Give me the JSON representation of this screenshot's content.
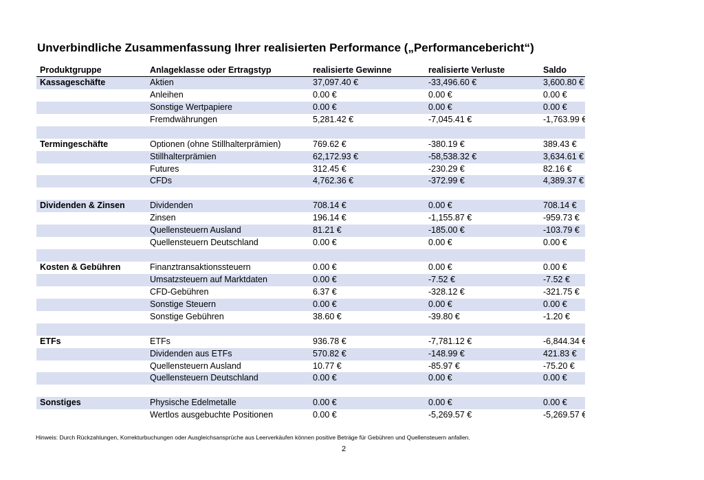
{
  "title": "Unverbindliche Zusammenfassung Ihrer realisierten Performance („Performancebericht“)",
  "headers": {
    "group": "Produktgruppe",
    "category": "Anlageklasse oder Ertragstyp",
    "gains": "realisierte Gewinne",
    "losses": "realisierte Verluste",
    "balance": "Saldo"
  },
  "rows": [
    {
      "group": "Kassageschäfte",
      "category": "Aktien",
      "gains": "37,097.40 €",
      "losses": "-33,496.60 €",
      "balance": "3,600.80 €"
    },
    {
      "group": "",
      "category": "Anleihen",
      "gains": "0.00 €",
      "losses": "0.00 €",
      "balance": "0.00 €"
    },
    {
      "group": "",
      "category": "Sonstige Wertpapiere",
      "gains": "0.00 €",
      "losses": "0.00 €",
      "balance": "0.00 €"
    },
    {
      "group": "",
      "category": "Fremdwährungen",
      "gains": "5,281.42 €",
      "losses": "-7,045.41 €",
      "balance": "-1,763.99 €"
    },
    {
      "group": "",
      "category": "",
      "gains": "",
      "losses": "",
      "balance": ""
    },
    {
      "group": "Termingeschäfte",
      "category": "Optionen (ohne Stillhalterprämien)",
      "gains": "769.62 €",
      "losses": "-380.19 €",
      "balance": "389.43 €"
    },
    {
      "group": "",
      "category": "Stillhalterprämien",
      "gains": "62,172.93 €",
      "losses": "-58,538.32 €",
      "balance": "3,634.61 €"
    },
    {
      "group": "",
      "category": "Futures",
      "gains": "312.45 €",
      "losses": "-230.29 €",
      "balance": "82.16 €"
    },
    {
      "group": "",
      "category": "CFDs",
      "gains": "4,762.36 €",
      "losses": "-372.99 €",
      "balance": "4,389.37 €"
    },
    {
      "group": "",
      "category": "",
      "gains": "",
      "losses": "",
      "balance": ""
    },
    {
      "group": "Dividenden & Zinsen",
      "category": "Dividenden",
      "gains": "708.14 €",
      "losses": "0.00 €",
      "balance": "708.14 €"
    },
    {
      "group": "",
      "category": "Zinsen",
      "gains": "196.14 €",
      "losses": "-1,155.87 €",
      "balance": "-959.73 €"
    },
    {
      "group": "",
      "category": "Quellensteuern Ausland",
      "gains": "81.21 €",
      "losses": "-185.00 €",
      "balance": "-103.79 €"
    },
    {
      "group": "",
      "category": "Quellensteuern Deutschland",
      "gains": "0.00 €",
      "losses": "0.00 €",
      "balance": "0.00 €"
    },
    {
      "group": "",
      "category": "",
      "gains": "",
      "losses": "",
      "balance": ""
    },
    {
      "group": "Kosten & Gebühren",
      "category": "Finanztransaktionssteuern",
      "gains": "0.00 €",
      "losses": "0.00 €",
      "balance": "0.00 €"
    },
    {
      "group": "",
      "category": "Umsatzsteuern auf Marktdaten",
      "gains": "0.00 €",
      "losses": "-7.52 €",
      "balance": "-7.52 €"
    },
    {
      "group": "",
      "category": "CFD-Gebühren",
      "gains": "6.37 €",
      "losses": "-328.12 €",
      "balance": "-321.75 €"
    },
    {
      "group": "",
      "category": "Sonstige Steuern",
      "gains": "0.00 €",
      "losses": "0.00 €",
      "balance": "0.00 €"
    },
    {
      "group": "",
      "category": "Sonstige Gebühren",
      "gains": "38.60 €",
      "losses": "-39.80 €",
      "balance": "-1.20 €"
    },
    {
      "group": "",
      "category": "",
      "gains": "",
      "losses": "",
      "balance": ""
    },
    {
      "group": "ETFs",
      "category": "ETFs",
      "gains": "936.78 €",
      "losses": "-7,781.12 €",
      "balance": "-6,844.34 €"
    },
    {
      "group": "",
      "category": "Dividenden aus ETFs",
      "gains": "570.82 €",
      "losses": "-148.99 €",
      "balance": "421.83 €"
    },
    {
      "group": "",
      "category": "Quellensteuern Ausland",
      "gains": "10.77 €",
      "losses": "-85.97 €",
      "balance": "-75.20 €"
    },
    {
      "group": "",
      "category": "Quellensteuern Deutschland",
      "gains": "0.00 €",
      "losses": "0.00 €",
      "balance": "0.00 €"
    },
    {
      "group": "",
      "category": "",
      "gains": "",
      "losses": "",
      "balance": ""
    },
    {
      "group": "Sonstiges",
      "category": "Physische Edelmetalle",
      "gains": "0.00 €",
      "losses": "0.00 €",
      "balance": "0.00 €"
    },
    {
      "group": "",
      "category": "Wertlos ausgebuchte Positionen",
      "gains": "0.00 €",
      "losses": "-5,269.57 €",
      "balance": "-5,269.57 €"
    }
  ],
  "note": "Hinweis: Durch Rückzahlungen, Korrekturbuchungen oder Ausgleichsansprüche aus Leerverkäufen können positive Beträge für Gebühren und Quellensteuern anfallen.",
  "page_number": "2",
  "colors": {
    "row_shade": "#d9dff1",
    "text": "#000000",
    "background": "#ffffff"
  }
}
